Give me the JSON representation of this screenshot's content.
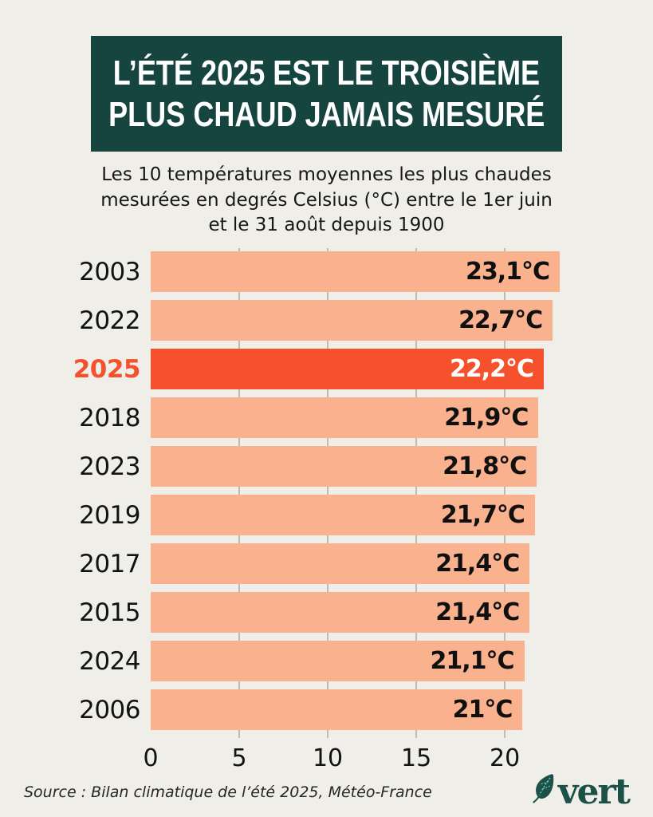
{
  "page": {
    "background_color": "#efeee8"
  },
  "banner": {
    "line1": "L’ÉTÉ 2025 EST LE TROISIÈME",
    "line2": "PLUS CHAUD JAMAIS MESURÉ",
    "background_color": "#16443f",
    "text_color": "#ffffff"
  },
  "subtitle": {
    "lines": [
      "Les 10 températures moyennes les plus chaudes",
      "mesurées en degrés Celsius (°C) entre le 1er juin",
      "et le 31 août depuis 1900"
    ]
  },
  "chart_data": {
    "type": "bar",
    "orientation": "horizontal",
    "title": "L’été 2025 est le troisième plus chaud jamais mesuré",
    "subtitle": "Les 10 températures moyennes les plus chaudes mesurées en degrés Celsius (°C) entre le 1er juin et le 31 août depuis 1900",
    "categories": [
      "2003",
      "2022",
      "2025",
      "2018",
      "2023",
      "2019",
      "2017",
      "2015",
      "2024",
      "2006"
    ],
    "values": [
      23.1,
      22.7,
      22.2,
      21.9,
      21.8,
      21.7,
      21.4,
      21.4,
      21.1,
      21.0
    ],
    "value_labels": [
      "23,1°C",
      "22,7°C",
      "22,2°C",
      "21,9°C",
      "21,8°C",
      "21,7°C",
      "21,4°C",
      "21,4°C",
      "21,1°C",
      "21°C"
    ],
    "unit": "°C",
    "highlight_category": "2025",
    "highlight_index": 2,
    "x_ticks": [
      0,
      5,
      10,
      15,
      20
    ],
    "xlim": [
      0,
      23.1
    ],
    "grid": true,
    "legend": false,
    "bar_color": "#fab28e",
    "highlight_bar_color": "#f4512c",
    "highlight_year_label_color": "#f4512c",
    "value_label_color": "#101010",
    "highlight_value_label_color": "#ffffff",
    "gridline_color": "#bcbbb4"
  },
  "footer": {
    "source": "Source : Bilan climatique de l’été 2025, Météo-France",
    "brand": "vert",
    "brand_color": "#1c5148"
  }
}
